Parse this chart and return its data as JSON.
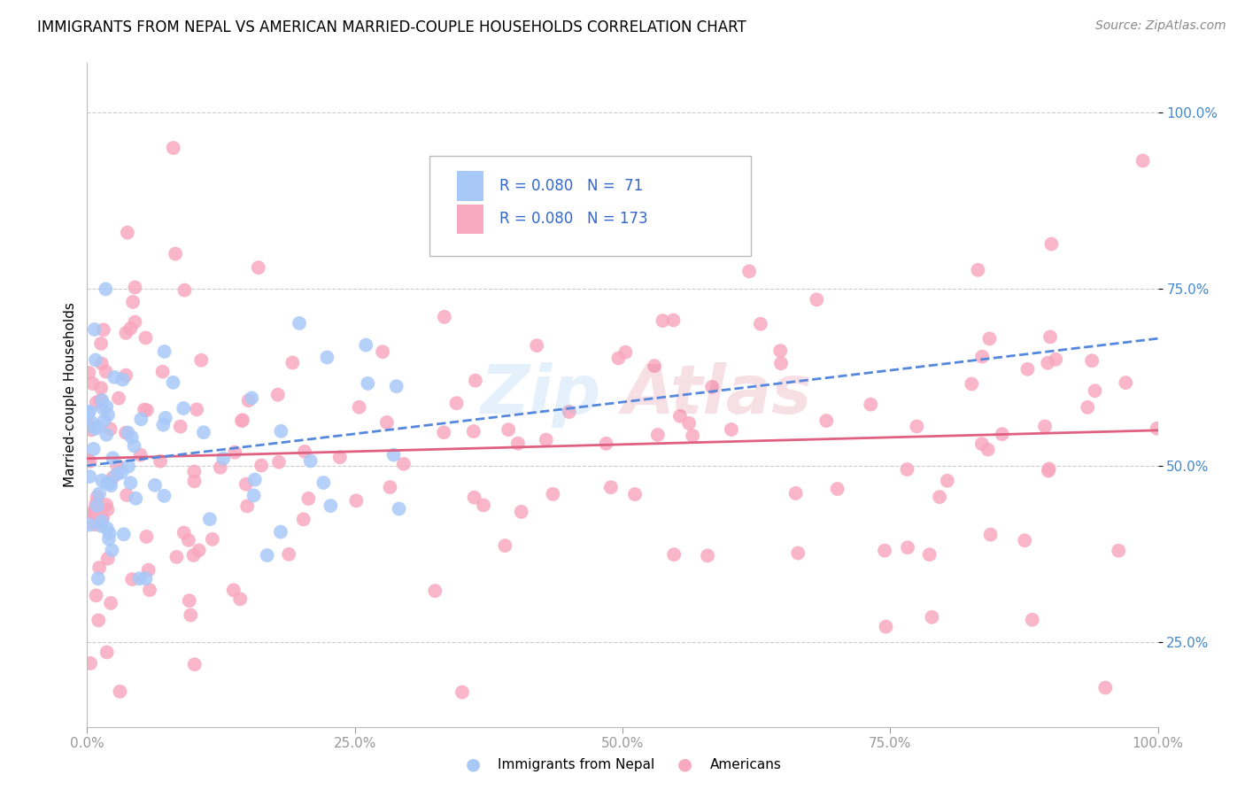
{
  "title": "IMMIGRANTS FROM NEPAL VS AMERICAN MARRIED-COUPLE HOUSEHOLDS CORRELATION CHART",
  "source": "Source: ZipAtlas.com",
  "ylabel": "Married-couple Households",
  "legend_label1": "Immigrants from Nepal",
  "legend_label2": "Americans",
  "R1": 0.08,
  "N1": 71,
  "R2": 0.08,
  "N2": 173,
  "xlim": [
    0.0,
    100.0
  ],
  "ylim": [
    13.0,
    107.0
  ],
  "xticks": [
    0.0,
    25.0,
    50.0,
    75.0,
    100.0
  ],
  "yticks": [
    25.0,
    50.0,
    75.0,
    100.0
  ],
  "xtick_labels": [
    "0.0%",
    "25.0%",
    "50.0%",
    "75.0%",
    "100.0%"
  ],
  "ytick_labels": [
    "25.0%",
    "50.0%",
    "75.0%",
    "100.0%"
  ],
  "color1": "#a8c8f8",
  "color2": "#f8a8c0",
  "trendline1_color": "#5588dd",
  "trendline2_color": "#e06080",
  "background_color": "#ffffff",
  "grid_color": "#cccccc",
  "watermark_zip_color": "#88bbee",
  "watermark_atlas_color": "#dd7090"
}
